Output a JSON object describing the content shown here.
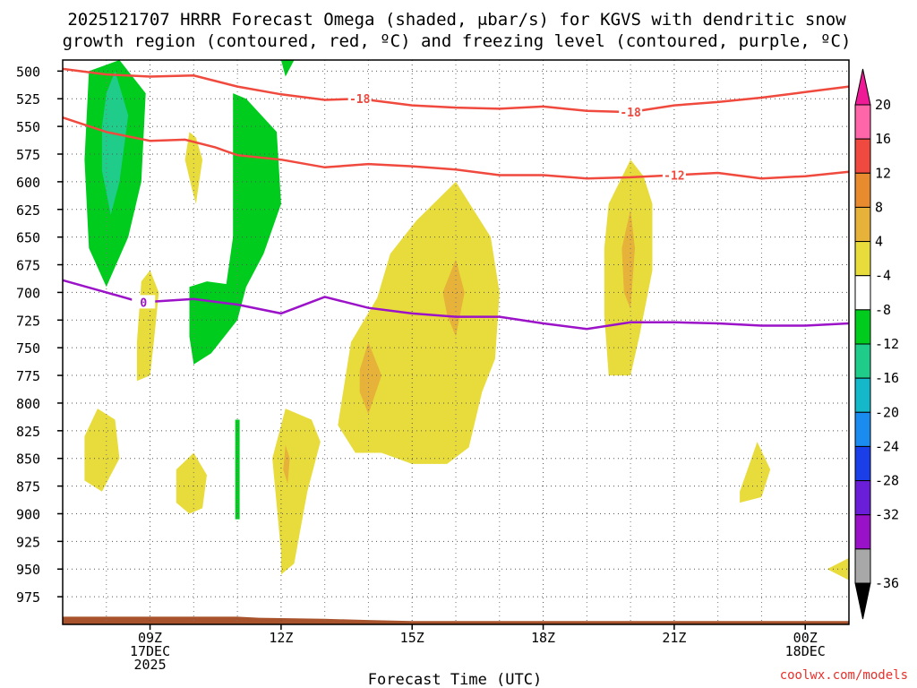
{
  "chart_data": {
    "type": "time-height contour plot",
    "title_line1": "2025121707 HRRR Forecast Omega (shaded, μbar/s) for KGVS with dendritic snow",
    "title_line2": "growth region (contoured, red, ºC) and freezing level (contoured, purple, ºC)",
    "xlabel": "Forecast Time (UTC)",
    "credit": "coolwx.com/models",
    "x_range_hours": [
      7,
      25
    ],
    "y_range_mb": [
      1000,
      490
    ],
    "y_ticks": [
      "500",
      "525",
      "550",
      "575",
      "600",
      "625",
      "650",
      "675",
      "700",
      "725",
      "750",
      "775",
      "800",
      "825",
      "850",
      "875",
      "900",
      "925",
      "950",
      "975"
    ],
    "x_ticks": [
      {
        "hour": 9,
        "line1": "09Z",
        "line2": "17DEC",
        "line3": "2025"
      },
      {
        "hour": 12,
        "line1": "12Z",
        "line2": "",
        "line3": ""
      },
      {
        "hour": 15,
        "line1": "15Z",
        "line2": "",
        "line3": ""
      },
      {
        "hour": 18,
        "line1": "18Z",
        "line2": "",
        "line3": ""
      },
      {
        "hour": 21,
        "line1": "21Z",
        "line2": "",
        "line3": ""
      },
      {
        "hour": 24,
        "line1": "00Z",
        "line2": "18DEC",
        "line3": ""
      }
    ],
    "colorbar": [
      {
        "label": "20",
        "color": "#ff66aa"
      },
      {
        "label": "16",
        "color": "#f04a40"
      },
      {
        "label": "12",
        "color": "#e88a2e"
      },
      {
        "label": "8",
        "color": "#e6b23a"
      },
      {
        "label": "4",
        "color": "#e8dc3c"
      },
      {
        "label": "-4",
        "color": "#ffffff"
      },
      {
        "label": "-8",
        "color": "#00cc1e"
      },
      {
        "label": "-12",
        "color": "#1fcc8a"
      },
      {
        "label": "-16",
        "color": "#15b8c8"
      },
      {
        "label": "-20",
        "color": "#1a8cf0"
      },
      {
        "label": "-24",
        "color": "#1a3ee8"
      },
      {
        "label": "-28",
        "color": "#6a1ed8"
      },
      {
        "label": "-32",
        "color": "#9a12c8"
      },
      {
        "label": "-36",
        "color": "#a8a8a8"
      }
    ],
    "colorbar_top_color": "#ee1a96",
    "colorbar_bottom_color": "#000000",
    "contours": [
      {
        "name": "-18C isotherm",
        "label": "-18",
        "color": "#f0493e",
        "points": [
          [
            7,
            498
          ],
          [
            8,
            503
          ],
          [
            9,
            505
          ],
          [
            10,
            504
          ],
          [
            11,
            514
          ],
          [
            12,
            521
          ],
          [
            13,
            526
          ],
          [
            13.8,
            525
          ],
          [
            15,
            531
          ],
          [
            16,
            533
          ],
          [
            17,
            534
          ],
          [
            18,
            532
          ],
          [
            19,
            536
          ],
          [
            20,
            537
          ],
          [
            21,
            531
          ],
          [
            22,
            528
          ],
          [
            23,
            524
          ],
          [
            24,
            519
          ],
          [
            25,
            514
          ]
        ]
      },
      {
        "name": "-12C isotherm",
        "label": "-12",
        "color": "#f0493e",
        "points": [
          [
            7,
            542
          ],
          [
            8,
            555
          ],
          [
            9,
            563
          ],
          [
            9.8,
            562
          ],
          [
            10.5,
            569
          ],
          [
            11,
            576
          ],
          [
            12,
            580
          ],
          [
            13,
            587
          ],
          [
            14,
            584
          ],
          [
            15,
            586
          ],
          [
            16,
            589
          ],
          [
            17,
            594
          ],
          [
            18,
            594
          ],
          [
            19,
            597
          ],
          [
            20,
            596
          ],
          [
            21,
            594
          ],
          [
            22,
            592
          ],
          [
            23,
            597
          ],
          [
            24,
            595
          ],
          [
            25,
            591
          ]
        ]
      },
      {
        "name": "0C freezing level",
        "label": "0",
        "color": "#9b12c8",
        "points": [
          [
            7,
            689
          ],
          [
            8,
            700
          ],
          [
            8.8,
            709
          ],
          [
            10,
            706
          ],
          [
            11,
            711
          ],
          [
            12,
            719
          ],
          [
            13,
            704
          ],
          [
            14,
            714
          ],
          [
            15,
            719
          ],
          [
            16,
            722
          ],
          [
            17,
            722
          ],
          [
            18,
            728
          ],
          [
            19,
            733
          ],
          [
            20,
            727
          ],
          [
            21,
            727
          ],
          [
            22,
            728
          ],
          [
            23,
            730
          ],
          [
            24,
            730
          ],
          [
            25,
            728
          ]
        ]
      }
    ],
    "omega_regions": [
      {
        "category": "-8 to -4",
        "color": "#00cc1e",
        "points": [
          [
            7.6,
            500
          ],
          [
            8.3,
            490
          ],
          [
            8.9,
            520
          ],
          [
            8.8,
            600
          ],
          [
            8.5,
            650
          ],
          [
            8.0,
            695
          ],
          [
            7.6,
            660
          ],
          [
            7.5,
            580
          ]
        ]
      },
      {
        "category": "-12 to -8",
        "color": "#1fcc8a",
        "points": [
          [
            8.0,
            520
          ],
          [
            8.2,
            500
          ],
          [
            8.5,
            540
          ],
          [
            8.3,
            600
          ],
          [
            8.1,
            630
          ],
          [
            7.9,
            590
          ],
          [
            7.9,
            550
          ]
        ]
      },
      {
        "category": "-8 to -4",
        "color": "#00cc1e",
        "points": [
          [
            12.0,
            490
          ],
          [
            12.3,
            490
          ],
          [
            12.1,
            505
          ]
        ]
      },
      {
        "category": "-8 to -4",
        "color": "#00cc1e",
        "points": [
          [
            10.9,
            520
          ],
          [
            11.2,
            525
          ],
          [
            11.9,
            555
          ],
          [
            12.0,
            620
          ],
          [
            11.6,
            665
          ],
          [
            11.2,
            695
          ],
          [
            10.8,
            708
          ],
          [
            10.7,
            705
          ],
          [
            10.9,
            650
          ],
          [
            10.9,
            590
          ]
        ]
      },
      {
        "category": "-8 to -4",
        "color": "#00cc1e",
        "points": [
          [
            9.9,
            695
          ],
          [
            10.3,
            690
          ],
          [
            11.2,
            695
          ],
          [
            11.0,
            725
          ],
          [
            10.4,
            755
          ],
          [
            10.0,
            765
          ],
          [
            9.9,
            740
          ]
        ]
      },
      {
        "category": "-8 to -4",
        "color": "#00cc1e",
        "points": [
          [
            10.95,
            815
          ],
          [
            11.05,
            815
          ],
          [
            11.05,
            905
          ],
          [
            10.95,
            905
          ]
        ]
      },
      {
        "category": "4 to 8",
        "color": "#e8dc3c",
        "points": [
          [
            9.9,
            555
          ],
          [
            10.05,
            560
          ],
          [
            10.2,
            580
          ],
          [
            10.05,
            620
          ],
          [
            9.95,
            605
          ],
          [
            9.8,
            580
          ]
        ]
      },
      {
        "category": "4 to 8",
        "color": "#e8dc3c",
        "points": [
          [
            8.8,
            690
          ],
          [
            9.0,
            680
          ],
          [
            9.2,
            700
          ],
          [
            9.1,
            740
          ],
          [
            9.0,
            775
          ],
          [
            8.7,
            780
          ],
          [
            8.7,
            745
          ]
        ]
      },
      {
        "category": "4 to 8",
        "color": "#e8dc3c",
        "points": [
          [
            7.5,
            830
          ],
          [
            7.8,
            805
          ],
          [
            8.2,
            815
          ],
          [
            8.3,
            850
          ],
          [
            7.9,
            880
          ],
          [
            7.5,
            870
          ]
        ]
      },
      {
        "category": "4 to 8",
        "color": "#e8dc3c",
        "points": [
          [
            9.6,
            860
          ],
          [
            10.0,
            845
          ],
          [
            10.3,
            865
          ],
          [
            10.2,
            895
          ],
          [
            9.9,
            900
          ],
          [
            9.6,
            890
          ]
        ]
      },
      {
        "category": "4 to 8",
        "color": "#e8dc3c",
        "points": [
          [
            11.8,
            850
          ],
          [
            12.1,
            805
          ],
          [
            12.7,
            815
          ],
          [
            12.9,
            835
          ],
          [
            12.6,
            880
          ],
          [
            12.3,
            945
          ],
          [
            12.0,
            955
          ],
          [
            12.0,
            935
          ]
        ]
      },
      {
        "category": "4 to 8",
        "color": "#e8dc3c",
        "points": [
          [
            13.3,
            820
          ],
          [
            13.6,
            745
          ],
          [
            14.2,
            705
          ],
          [
            14.5,
            665
          ],
          [
            15.1,
            635
          ],
          [
            16.0,
            600
          ],
          [
            16.8,
            650
          ],
          [
            17.0,
            700
          ],
          [
            16.9,
            760
          ],
          [
            16.6,
            790
          ],
          [
            16.3,
            840
          ],
          [
            15.8,
            855
          ],
          [
            15.0,
            855
          ],
          [
            14.3,
            845
          ],
          [
            13.7,
            845
          ]
        ]
      },
      {
        "category": "4 to 8",
        "color": "#e8dc3c",
        "points": [
          [
            19.5,
            620
          ],
          [
            20.0,
            580
          ],
          [
            20.3,
            595
          ],
          [
            20.5,
            620
          ],
          [
            20.5,
            680
          ],
          [
            20.2,
            740
          ],
          [
            20.0,
            775
          ],
          [
            19.5,
            775
          ],
          [
            19.4,
            720
          ],
          [
            19.4,
            660
          ]
        ]
      },
      {
        "category": "4 to 8",
        "color": "#e8dc3c",
        "points": [
          [
            22.5,
            880
          ],
          [
            22.9,
            835
          ],
          [
            23.2,
            860
          ],
          [
            23.0,
            885
          ],
          [
            22.5,
            890
          ]
        ]
      },
      {
        "category": "4 to 8",
        "color": "#e8dc3c",
        "points": [
          [
            24.5,
            950
          ],
          [
            25.0,
            940
          ],
          [
            25.0,
            960
          ]
        ]
      },
      {
        "category": "8 to 12",
        "color": "#e6b23a",
        "points": [
          [
            12.1,
            838
          ],
          [
            12.2,
            850
          ],
          [
            12.15,
            873
          ],
          [
            12.05,
            860
          ]
        ]
      },
      {
        "category": "8 to 12",
        "color": "#e6b23a",
        "points": [
          [
            13.8,
            770
          ],
          [
            14.0,
            745
          ],
          [
            14.3,
            775
          ],
          [
            14.0,
            810
          ],
          [
            13.8,
            790
          ]
        ]
      },
      {
        "category": "8 to 12",
        "color": "#e6b23a",
        "points": [
          [
            15.7,
            700
          ],
          [
            16.0,
            670
          ],
          [
            16.2,
            700
          ],
          [
            16.0,
            740
          ],
          [
            15.8,
            720
          ]
        ]
      },
      {
        "category": "8 to 12",
        "color": "#e6b23a",
        "points": [
          [
            19.8,
            660
          ],
          [
            20.0,
            625
          ],
          [
            20.1,
            660
          ],
          [
            20.0,
            715
          ],
          [
            19.85,
            700
          ]
        ]
      }
    ],
    "terrain_color": "#a8532b",
    "terrain_points": [
      [
        7,
        993
      ],
      [
        11,
        993
      ],
      [
        11.5,
        994
      ],
      [
        13,
        995
      ],
      [
        14,
        996
      ],
      [
        15,
        997
      ],
      [
        25,
        997
      ]
    ]
  }
}
